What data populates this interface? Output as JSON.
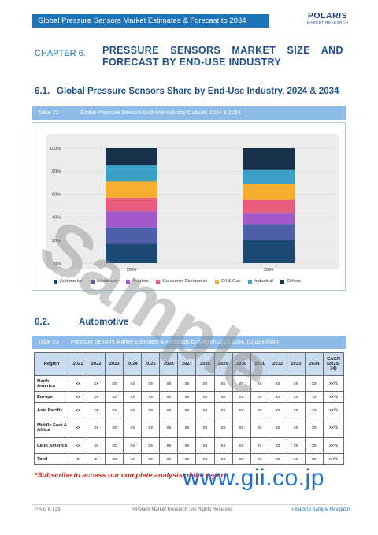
{
  "header": {
    "bar_text": "Global Pressure Sensors Market Estimates & Forecast to 2034",
    "logo_main": "POLARIS",
    "logo_sub": "MARKET RESEARCH"
  },
  "chapter": {
    "number": "CHAPTER 6.",
    "title_line1": "PRESSURE SENSORS MARKET SIZE AND",
    "title_line2": "FORECAST BY END-USE INDUSTRY"
  },
  "section1": {
    "number": "6.1.",
    "title": "Global Pressure Sensors Share by End-Use Industry, 2024 & 2034"
  },
  "table22": {
    "number": "Table 22",
    "title": "Global Pressure Sensors End-Use Industry Outlook, 2024 & 2034"
  },
  "chart_data": {
    "type": "bar",
    "stacked": true,
    "categories": [
      "2024",
      "2034"
    ],
    "ylim": [
      0,
      100
    ],
    "yticks": [
      "0%",
      "20%",
      "40%",
      "60%",
      "80%",
      "100%"
    ],
    "series": [
      {
        "name": "Automotive",
        "color": "#1c4a74",
        "values": [
          17,
          20
        ]
      },
      {
        "name": "Healthcare",
        "color": "#4f5fab",
        "values": [
          14,
          14
        ]
      },
      {
        "name": "Aviation",
        "color": "#a25acb",
        "values": [
          14,
          10
        ]
      },
      {
        "name": "Consumer Electronics",
        "color": "#e95b7c",
        "values": [
          12,
          11
        ]
      },
      {
        "name": "Oil & Gas",
        "color": "#f6ae2d",
        "values": [
          14,
          14
        ]
      },
      {
        "name": "Industrial",
        "color": "#3aa0c6",
        "values": [
          14,
          12
        ]
      },
      {
        "name": "Others",
        "color": "#17314d",
        "values": [
          15,
          19
        ]
      }
    ]
  },
  "legend_labels": {
    "l0": "Automotive",
    "l1": "Healthcare",
    "l2": "Aviation",
    "l3": "Consumer Electronics",
    "l4": "Oil & Gas",
    "l5": "Industrial",
    "l6": "Others"
  },
  "section2": {
    "number": "6.2.",
    "title": "Automotive"
  },
  "table23": {
    "number": "Table 23",
    "title": "Pressure Sensors Market Estimates & Forecasts by Region 2021-2034, (USD Billion)",
    "headers": [
      "Region",
      "2021",
      "2022",
      "2023",
      "2024",
      "2025",
      "2026",
      "2027",
      "2028",
      "2029",
      "2030",
      "2031",
      "2032",
      "2033",
      "2034",
      "CAGR (2025-34)"
    ],
    "rows": [
      [
        "North America",
        "xx",
        "xx",
        "xx",
        "xx",
        "xx",
        "xx",
        "xx",
        "xx",
        "xx",
        "xx",
        "xx",
        "xx",
        "xx",
        "xx",
        "xx%"
      ],
      [
        "Europe",
        "xx",
        "xx",
        "xx",
        "xx",
        "xx",
        "xx",
        "xx",
        "xx",
        "xx",
        "xx",
        "xx",
        "xx",
        "xx",
        "xx",
        "xx%"
      ],
      [
        "Asia Pacific",
        "xx",
        "xx",
        "xx",
        "xx",
        "xx",
        "xx",
        "xx",
        "xx",
        "xx",
        "xx",
        "xx",
        "xx",
        "xx",
        "xx",
        "xx%"
      ],
      [
        "Middle East & Africa",
        "xx",
        "xx",
        "xx",
        "xx",
        "xx",
        "xx",
        "xx",
        "xx",
        "xx",
        "xx",
        "xx",
        "xx",
        "xx",
        "xx",
        "xx%"
      ],
      [
        "Latin America",
        "xx",
        "xx",
        "xx",
        "xx",
        "xx",
        "xx",
        "xx",
        "xx",
        "xx",
        "xx",
        "xx",
        "xx",
        "xx",
        "xx",
        "xx%"
      ],
      [
        "Total",
        "xx",
        "xx",
        "xx",
        "xx",
        "xx",
        "xx",
        "xx",
        "xx",
        "xx",
        "xx",
        "xx",
        "xx",
        "xx",
        "xx",
        "xx%"
      ]
    ]
  },
  "subscribe": "*Subscribe to access our complete analysis of the report",
  "watermark": "Sample",
  "gii": "www.gii.co.jp",
  "footer": {
    "page": "P A G E | 29",
    "copyright": "©Polaris Market Research : All Rights Reserved",
    "nav": "« Back to Sample Navigator"
  }
}
